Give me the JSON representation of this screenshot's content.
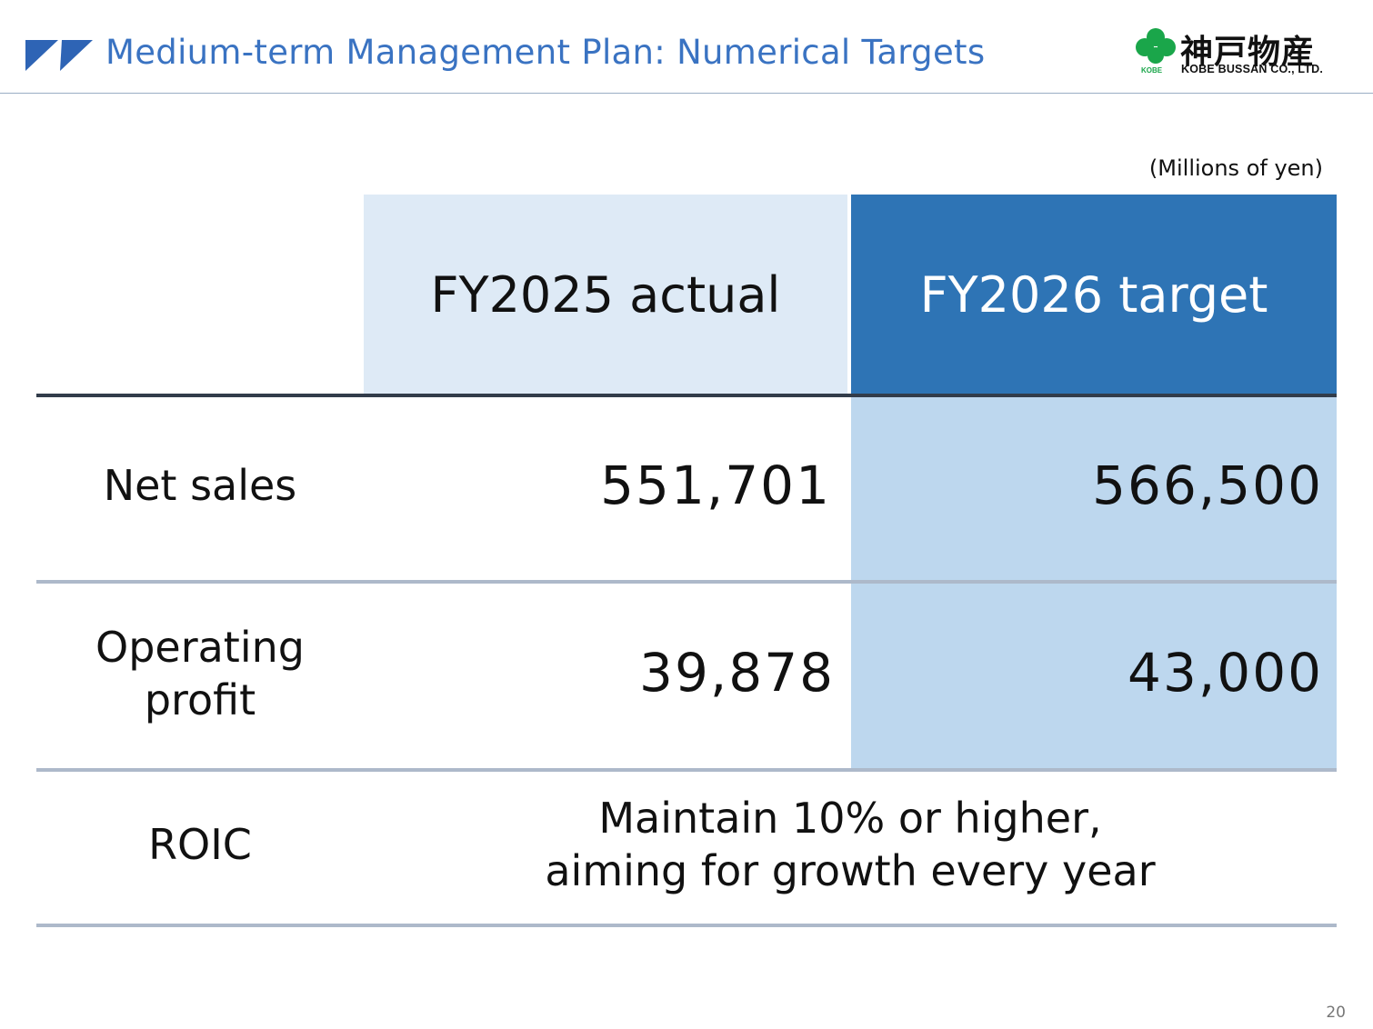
{
  "header": {
    "title": "Medium-term Management Plan: Numerical Targets",
    "logo": {
      "name_jp": "神戸物産",
      "name_en": "KOBE BUSSAN CO., LTD.",
      "mark_text": "KOBE"
    }
  },
  "unit_note": "(Millions of yen)",
  "table": {
    "columns": [
      "FY2025 actual",
      "FY2026 target"
    ],
    "rows": [
      {
        "label": "Net sales",
        "actual": "551,701",
        "target": "566,500"
      },
      {
        "label_line1": "Operating",
        "label_line2": "profit",
        "actual": "39,878",
        "target": "43,000"
      },
      {
        "label": "ROIC",
        "text_line1": "Maintain 10% or higher,",
        "text_line2": "aiming for growth every year"
      }
    ]
  },
  "page_number": "20",
  "colors": {
    "title": "#3a73c2",
    "header_target": "#2e74b5",
    "header_actual": "#deeaf6",
    "target_column": "#bdd7ee"
  }
}
